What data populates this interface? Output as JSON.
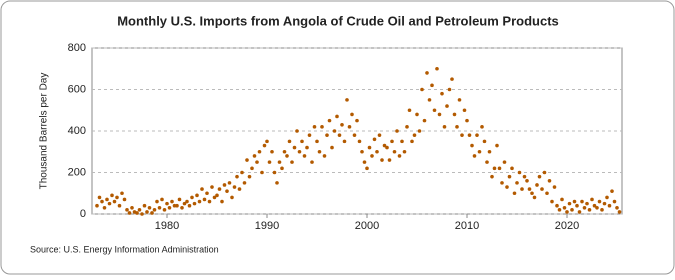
{
  "chart_data": {
    "type": "scatter",
    "title": "Monthly U.S. Imports from Angola of Crude Oil and Petroleum Products",
    "y_label": "Thousand Barrels per Day",
    "source": "Source: U.S. Energy Information Administration",
    "color": "#b35a00",
    "grid": true,
    "xlim": [
      1972.5,
      2025.5
    ],
    "xticks": [
      1980,
      1990,
      2000,
      2010,
      2020
    ],
    "ylim": [
      0,
      800
    ],
    "yticks": [
      0,
      200,
      400,
      600,
      800
    ],
    "x": [
      1973,
      1973.25,
      1973.5,
      1973.75,
      1974,
      1974.25,
      1974.5,
      1974.75,
      1975,
      1975.25,
      1975.5,
      1975.75,
      1976,
      1976.25,
      1976.5,
      1976.75,
      1977,
      1977.25,
      1977.5,
      1977.75,
      1978,
      1978.25,
      1978.5,
      1978.75,
      1979,
      1979.25,
      1979.5,
      1979.75,
      1980,
      1980.25,
      1980.5,
      1980.75,
      1981,
      1981.25,
      1981.5,
      1981.75,
      1982,
      1982.25,
      1982.5,
      1982.75,
      1983,
      1983.25,
      1983.5,
      1983.75,
      1984,
      1984.25,
      1984.5,
      1984.75,
      1985,
      1985.25,
      1985.5,
      1985.75,
      1986,
      1986.25,
      1986.5,
      1986.75,
      1987,
      1987.25,
      1987.5,
      1987.75,
      1988,
      1988.25,
      1988.5,
      1988.75,
      1989,
      1989.25,
      1989.5,
      1989.75,
      1990,
      1990.25,
      1990.5,
      1990.75,
      1991,
      1991.25,
      1991.5,
      1991.75,
      1992,
      1992.25,
      1992.5,
      1992.75,
      1993,
      1993.25,
      1993.5,
      1993.75,
      1994,
      1994.25,
      1994.5,
      1994.75,
      1995,
      1995.25,
      1995.5,
      1995.75,
      1996,
      1996.25,
      1996.5,
      1996.75,
      1997,
      1997.25,
      1997.5,
      1997.75,
      1998,
      1998.25,
      1998.5,
      1998.75,
      1999,
      1999.25,
      1999.5,
      1999.75,
      2000,
      2000.25,
      2000.5,
      2000.75,
      2001,
      2001.25,
      2001.5,
      2001.75,
      2002,
      2002.25,
      2002.5,
      2002.75,
      2003,
      2003.25,
      2003.5,
      2003.75,
      2004,
      2004.25,
      2004.5,
      2004.75,
      2005,
      2005.25,
      2005.5,
      2005.75,
      2006,
      2006.25,
      2006.5,
      2006.75,
      2007,
      2007.25,
      2007.5,
      2007.75,
      2008,
      2008.25,
      2008.5,
      2008.75,
      2009,
      2009.25,
      2009.5,
      2009.75,
      2010,
      2010.25,
      2010.5,
      2010.75,
      2011,
      2011.25,
      2011.5,
      2011.75,
      2012,
      2012.25,
      2012.5,
      2012.75,
      2013,
      2013.25,
      2013.5,
      2013.75,
      2014,
      2014.25,
      2014.5,
      2014.75,
      2015,
      2015.25,
      2015.5,
      2015.75,
      2016,
      2016.25,
      2016.5,
      2016.75,
      2017,
      2017.25,
      2017.5,
      2017.75,
      2018,
      2018.25,
      2018.5,
      2018.75,
      2019,
      2019.25,
      2019.5,
      2019.75,
      2020,
      2020.25,
      2020.5,
      2020.75,
      2021,
      2021.25,
      2021.5,
      2021.75,
      2022,
      2022.25,
      2022.5,
      2022.75,
      2023,
      2023.25,
      2023.5,
      2023.75,
      2024,
      2024.25,
      2024.5,
      2024.75,
      2025,
      2025.25
    ],
    "values": [
      40,
      80,
      60,
      30,
      70,
      50,
      90,
      60,
      80,
      40,
      100,
      70,
      20,
      5,
      30,
      10,
      5,
      20,
      0,
      40,
      10,
      30,
      5,
      20,
      60,
      30,
      70,
      20,
      50,
      30,
      60,
      40,
      40,
      70,
      30,
      50,
      60,
      40,
      80,
      50,
      90,
      60,
      120,
      70,
      100,
      60,
      130,
      80,
      90,
      120,
      60,
      140,
      110,
      150,
      80,
      130,
      180,
      120,
      200,
      150,
      260,
      180,
      220,
      280,
      250,
      300,
      200,
      330,
      350,
      250,
      300,
      200,
      150,
      250,
      220,
      300,
      280,
      350,
      250,
      320,
      400,
      300,
      350,
      280,
      320,
      380,
      250,
      420,
      350,
      300,
      420,
      280,
      380,
      450,
      320,
      400,
      470,
      380,
      430,
      350,
      550,
      420,
      480,
      380,
      450,
      350,
      300,
      250,
      220,
      320,
      280,
      360,
      300,
      380,
      260,
      330,
      320,
      260,
      350,
      300,
      400,
      280,
      350,
      300,
      420,
      500,
      350,
      380,
      480,
      400,
      600,
      450,
      680,
      550,
      620,
      500,
      700,
      480,
      580,
      420,
      520,
      600,
      650,
      480,
      420,
      550,
      380,
      500,
      450,
      380,
      330,
      280,
      380,
      300,
      420,
      350,
      250,
      300,
      180,
      220,
      330,
      220,
      150,
      250,
      130,
      180,
      220,
      100,
      150,
      200,
      120,
      180,
      160,
      120,
      100,
      80,
      140,
      180,
      120,
      200,
      100,
      160,
      60,
      130,
      40,
      20,
      70,
      30,
      10,
      50,
      20,
      60,
      40,
      10,
      60,
      30,
      50,
      20,
      70,
      40,
      30,
      60,
      20,
      50,
      80,
      40,
      110,
      60,
      30,
      10
    ]
  }
}
